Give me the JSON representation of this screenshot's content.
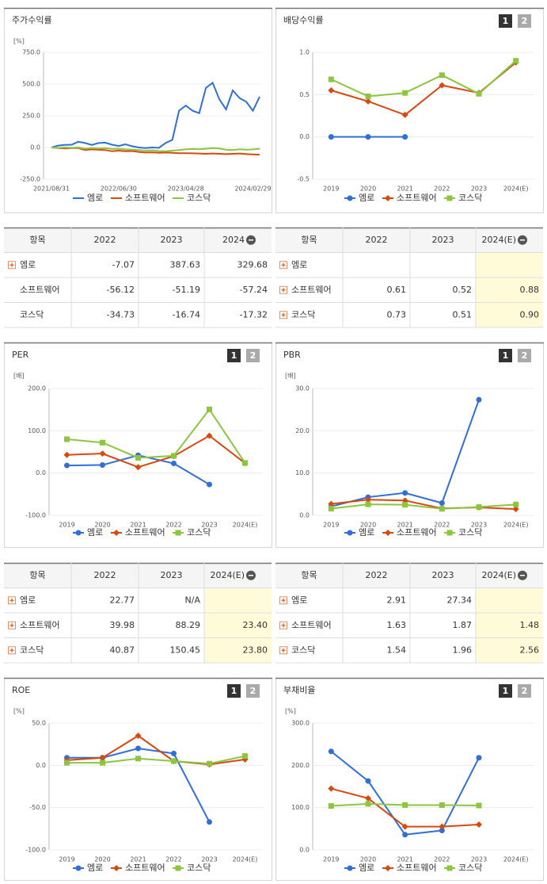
{
  "chart_data": [
    {
      "type": "line",
      "title": "주가수익률",
      "unit": "[%]",
      "grid": true,
      "categories": [
        "2021/08/31",
        null,
        null,
        null,
        null,
        null,
        null,
        null,
        null,
        null,
        "2022/06/30",
        null,
        null,
        null,
        null,
        null,
        null,
        null,
        null,
        null,
        "2023/04/28",
        null,
        null,
        null,
        null,
        null,
        null,
        null,
        null,
        null,
        "2024/02/29",
        null
      ],
      "series": [
        {
          "name": "엠로",
          "color": "#2f6fd6",
          "values": [
            0,
            15,
            20,
            22,
            45,
            35,
            20,
            35,
            38,
            22,
            12,
            25,
            10,
            0,
            -5,
            0,
            -3,
            35,
            60,
            290,
            330,
            290,
            270,
            470,
            510,
            380,
            300,
            450,
            390,
            360,
            290,
            400
          ]
        },
        {
          "name": "소프트웨어",
          "color": "#d9480f",
          "values": [
            0,
            -5,
            -8,
            -5,
            -5,
            -20,
            -15,
            -18,
            -20,
            -30,
            -25,
            -30,
            -28,
            -35,
            -40,
            -38,
            -42,
            -40,
            -42,
            -45,
            -45,
            -46,
            -48,
            -50,
            -48,
            -50,
            -52,
            -50,
            -48,
            -52,
            -55,
            -57
          ]
        },
        {
          "name": "코스닥",
          "color": "#8cc63f",
          "values": [
            0,
            -3,
            0,
            -2,
            0,
            -10,
            -5,
            -8,
            -5,
            -12,
            -10,
            -15,
            -18,
            -20,
            -25,
            -22,
            -28,
            -30,
            -25,
            -20,
            -15,
            -12,
            -14,
            -10,
            -5,
            -8,
            -18,
            -20,
            -14,
            -18,
            -15,
            -10
          ]
        }
      ],
      "ylim": [
        -250,
        750
      ],
      "yticks": [
        {
          "value": 750,
          "label": "750.0"
        },
        {
          "value": 500,
          "label": "500.0"
        },
        {
          "value": 250,
          "label": "250.0"
        },
        {
          "value": 0,
          "label": "0.0"
        },
        {
          "value": -250,
          "label": "-250.0"
        }
      ]
    },
    {
      "type": "line",
      "title": "배당수익률",
      "page_buttons": [
        "1",
        "2"
      ],
      "grid": true,
      "categories": [
        "2019",
        "2020",
        "2021",
        "2022",
        "2023",
        "2024(E)"
      ],
      "series": [
        {
          "name": "엠로",
          "color": "#2f6fd6",
          "marker": "circle",
          "values": [
            0,
            0,
            0,
            null,
            null,
            null
          ]
        },
        {
          "name": "소프트웨어",
          "color": "#d9480f",
          "marker": "diamond",
          "values": [
            0.55,
            0.42,
            0.26,
            0.61,
            0.52,
            0.88
          ]
        },
        {
          "name": "코스닥",
          "color": "#8cc63f",
          "marker": "square",
          "values": [
            0.68,
            0.48,
            0.52,
            0.73,
            0.51,
            0.9
          ]
        }
      ],
      "ylim": [
        -0.5,
        1
      ],
      "yticks": [
        {
          "value": 1,
          "label": "1.0"
        },
        0.5,
        {
          "value": 0,
          "label": "0.0"
        },
        -0.5
      ]
    },
    {
      "type": "line",
      "title": "PER",
      "unit": "[배]",
      "page_buttons": [
        "1",
        "2"
      ],
      "grid": true,
      "categories": [
        "2019",
        "2020",
        "2021",
        "2022",
        "2023",
        "2024(E)"
      ],
      "series": [
        {
          "name": "엠로",
          "color": "#2f6fd6",
          "marker": "circle",
          "values": [
            18,
            19,
            42,
            22.77,
            -27,
            null
          ]
        },
        {
          "name": "소프트웨어",
          "color": "#d9480f",
          "marker": "diamond",
          "values": [
            43,
            46,
            14,
            39.98,
            88.29,
            23.4
          ]
        },
        {
          "name": "코스닥",
          "color": "#8cc63f",
          "marker": "square",
          "values": [
            80,
            72,
            36,
            40.87,
            150.45,
            23.8
          ]
        }
      ],
      "ylim": [
        -100,
        200
      ],
      "yticks": [
        {
          "value": 200,
          "label": "200.0"
        },
        {
          "value": 100,
          "label": "100.0"
        },
        {
          "value": 0,
          "label": "0.0"
        },
        {
          "value": -100,
          "label": "-100.0"
        }
      ]
    },
    {
      "type": "line",
      "title": "PBR",
      "unit": "[배]",
      "page_buttons": [
        "1",
        "2"
      ],
      "grid": true,
      "categories": [
        "2019",
        "2020",
        "2021",
        "2022",
        "2023",
        "2024(E)"
      ],
      "series": [
        {
          "name": "엠로",
          "color": "#2f6fd6",
          "marker": "circle",
          "values": [
            2.1,
            4.3,
            5.3,
            2.91,
            27.34,
            null
          ]
        },
        {
          "name": "소프트웨어",
          "color": "#d9480f",
          "marker": "diamond",
          "values": [
            2.7,
            3.7,
            3.5,
            1.63,
            1.87,
            1.48
          ]
        },
        {
          "name": "코스닥",
          "color": "#8cc63f",
          "marker": "square",
          "values": [
            1.6,
            2.6,
            2.5,
            1.54,
            1.96,
            2.56
          ]
        }
      ],
      "ylim": [
        0,
        30
      ],
      "yticks": [
        {
          "value": 30,
          "label": "30.0"
        },
        {
          "value": 20,
          "label": "20.0"
        },
        {
          "value": 10,
          "label": "10.0"
        },
        {
          "value": 0,
          "label": "0.0"
        }
      ]
    },
    {
      "type": "line",
      "title": "ROE",
      "unit": "[%]",
      "page_buttons": [
        "1",
        "2"
      ],
      "grid": true,
      "categories": [
        "2019",
        "2020",
        "2021",
        "2022",
        "2023",
        "2024(E)"
      ],
      "series": [
        {
          "name": "엠로",
          "color": "#2f6fd6",
          "marker": "circle",
          "values": [
            9,
            9,
            20,
            14,
            -67,
            null
          ]
        },
        {
          "name": "소프트웨어",
          "color": "#d9480f",
          "marker": "diamond",
          "values": [
            6,
            9,
            35,
            5,
            1,
            7
          ]
        },
        {
          "name": "코스닥",
          "color": "#8cc63f",
          "marker": "square",
          "values": [
            3,
            3,
            8,
            5,
            2,
            11
          ]
        }
      ],
      "ylim": [
        -100,
        50
      ],
      "yticks": [
        {
          "value": 50,
          "label": "50.0"
        },
        {
          "value": 0,
          "label": "0.0"
        },
        {
          "value": -50,
          "label": "-50.0"
        },
        {
          "value": -100,
          "label": "-100.0"
        }
      ]
    },
    {
      "type": "line",
      "title": "부채비율",
      "unit": "[%]",
      "page_buttons": [
        "1",
        "2"
      ],
      "grid": true,
      "categories": [
        "2019",
        "2020",
        "2021",
        "2022",
        "2023",
        "2024(E)"
      ],
      "series": [
        {
          "name": "엠로",
          "color": "#2f6fd6",
          "marker": "circle",
          "values": [
            233,
            163,
            36,
            46,
            218,
            null
          ]
        },
        {
          "name": "소프트웨어",
          "color": "#d9480f",
          "marker": "diamond",
          "values": [
            145,
            122,
            55,
            55,
            60,
            null
          ]
        },
        {
          "name": "코스닥",
          "color": "#8cc63f",
          "marker": "square",
          "values": [
            104,
            109,
            106,
            106,
            105,
            null
          ]
        }
      ],
      "ylim": [
        0,
        300
      ],
      "yticks": [
        {
          "value": 300,
          "label": "300.0"
        },
        {
          "value": 200,
          "label": "200.0"
        },
        {
          "value": 100,
          "label": "100.0"
        },
        {
          "value": 0,
          "label": "0.0"
        }
      ]
    }
  ],
  "tables": [
    {
      "columns": [
        "항목",
        "2022",
        "2023",
        "2024"
      ],
      "icon_rows": [
        0
      ],
      "highlight_last_column": false,
      "rows": [
        [
          "엠로",
          "-7.07",
          "387.63",
          "329.68"
        ],
        [
          "소프트웨어",
          "-56.12",
          "-51.19",
          "-57.24"
        ],
        [
          "코스닥",
          "-34.73",
          "-16.74",
          "-17.32"
        ]
      ]
    },
    {
      "columns": [
        "항목",
        "2022",
        "2023",
        "2024(E)"
      ],
      "icon_rows": [
        0,
        1,
        2
      ],
      "highlight_last_column": true,
      "rows": [
        [
          "엠로",
          null,
          null,
          null
        ],
        [
          "소프트웨어",
          "0.61",
          "0.52",
          "0.88"
        ],
        [
          "코스닥",
          "0.73",
          "0.51",
          "0.90"
        ]
      ]
    },
    {
      "columns": [
        "항목",
        "2022",
        "2023",
        "2024(E)"
      ],
      "icon_rows": [
        0,
        1,
        2
      ],
      "highlight_last_column": true,
      "rows": [
        [
          "엠로",
          "22.77",
          "N/A",
          null
        ],
        [
          "소프트웨어",
          "39.98",
          "88.29",
          "23.40"
        ],
        [
          "코스닥",
          "40.87",
          "150.45",
          "23.80"
        ]
      ]
    },
    {
      "columns": [
        "항목",
        "2022",
        "2023",
        "2024(E)"
      ],
      "icon_rows": [
        0,
        1,
        2
      ],
      "highlight_last_column": true,
      "rows": [
        [
          "엠로",
          "2.91",
          "27.34",
          null
        ],
        [
          "소프트웨어",
          "1.63",
          "1.87",
          "1.48"
        ],
        [
          "코스닥",
          "1.54",
          "1.96",
          "2.56"
        ]
      ]
    }
  ]
}
